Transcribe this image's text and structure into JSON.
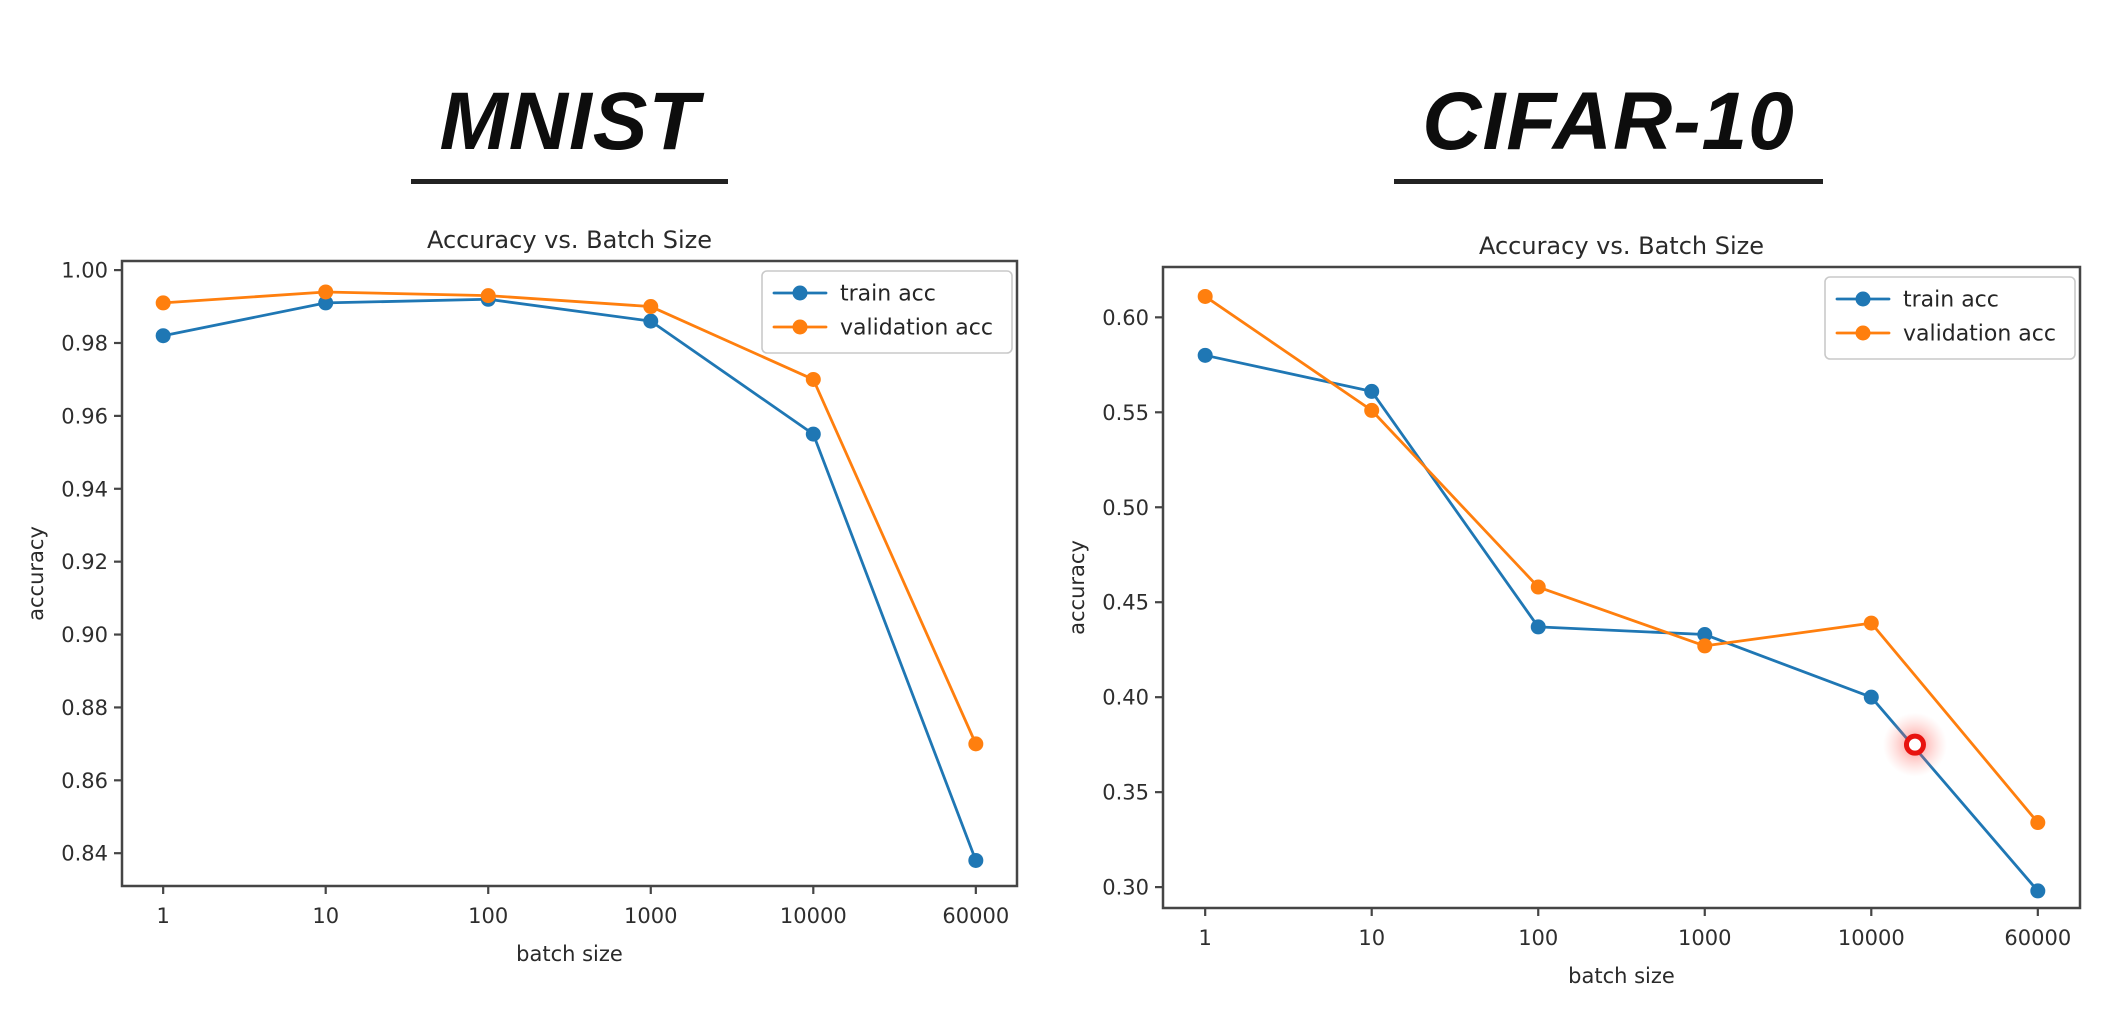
{
  "page": {
    "background": "#ffffff"
  },
  "panels": [
    {
      "id": "mnist",
      "heading": "MNIST"
    },
    {
      "id": "cifar",
      "heading": "CIFAR-10"
    }
  ],
  "colors": {
    "train": "#1f77b4",
    "validation": "#ff7f0e",
    "highlight": "#e8130f",
    "spine": "#454545",
    "tick_text": "#2e2e2e",
    "title_text": "#2a2a2a",
    "legend_border": "#c9c9c9"
  },
  "chart_data": [
    {
      "id": "mnist",
      "type": "line",
      "title": "Accuracy vs. Batch Size",
      "xlabel": "batch size",
      "ylabel": "accuracy",
      "x_scale": "log-category",
      "x": [
        1,
        10,
        100,
        1000,
        10000,
        60000
      ],
      "x_tick_labels": [
        "1",
        "10",
        "100",
        "1000",
        "10000",
        "60000"
      ],
      "ylim": [
        0.831,
        1.0025
      ],
      "yticks": [
        0.84,
        0.86,
        0.88,
        0.9,
        0.92,
        0.94,
        0.96,
        0.98,
        1.0
      ],
      "ytick_labels": [
        "0.84",
        "0.86",
        "0.88",
        "0.90",
        "0.92",
        "0.94",
        "0.96",
        "0.98",
        "1.00"
      ],
      "series": [
        {
          "name": "train acc",
          "color": "#1f77b4",
          "values": [
            0.982,
            0.991,
            0.992,
            0.986,
            0.955,
            0.838
          ]
        },
        {
          "name": "validation acc",
          "color": "#ff7f0e",
          "values": [
            0.991,
            0.994,
            0.993,
            0.99,
            0.97,
            0.87
          ]
        }
      ],
      "legend": {
        "position": "upper right",
        "labels": [
          "train acc",
          "validation acc"
        ]
      },
      "annotations": []
    },
    {
      "id": "cifar",
      "type": "line",
      "title": "Accuracy vs. Batch Size",
      "xlabel": "batch size",
      "ylabel": "accuracy",
      "x_scale": "log-category",
      "x": [
        1,
        10,
        100,
        1000,
        10000,
        60000
      ],
      "x_tick_labels": [
        "1",
        "10",
        "100",
        "1000",
        "10000",
        "60000"
      ],
      "ylim": [
        0.289,
        0.6265
      ],
      "yticks": [
        0.3,
        0.35,
        0.4,
        0.45,
        0.5,
        0.55,
        0.6
      ],
      "ytick_labels": [
        "0.30",
        "0.35",
        "0.40",
        "0.45",
        "0.50",
        "0.55",
        "0.60"
      ],
      "series": [
        {
          "name": "train acc",
          "color": "#1f77b4",
          "values": [
            0.58,
            0.561,
            0.437,
            0.433,
            0.4,
            0.298
          ]
        },
        {
          "name": "validation acc",
          "color": "#ff7f0e",
          "values": [
            0.611,
            0.551,
            0.458,
            0.427,
            0.439,
            0.334
          ]
        }
      ],
      "legend": {
        "position": "upper right",
        "labels": [
          "train acc",
          "validation acc"
        ]
      },
      "annotations": [
        {
          "type": "highlight-ring",
          "x": 16000,
          "y": 0.375,
          "color": "#e8130f",
          "glow_color": "#ff4a40"
        }
      ]
    }
  ]
}
